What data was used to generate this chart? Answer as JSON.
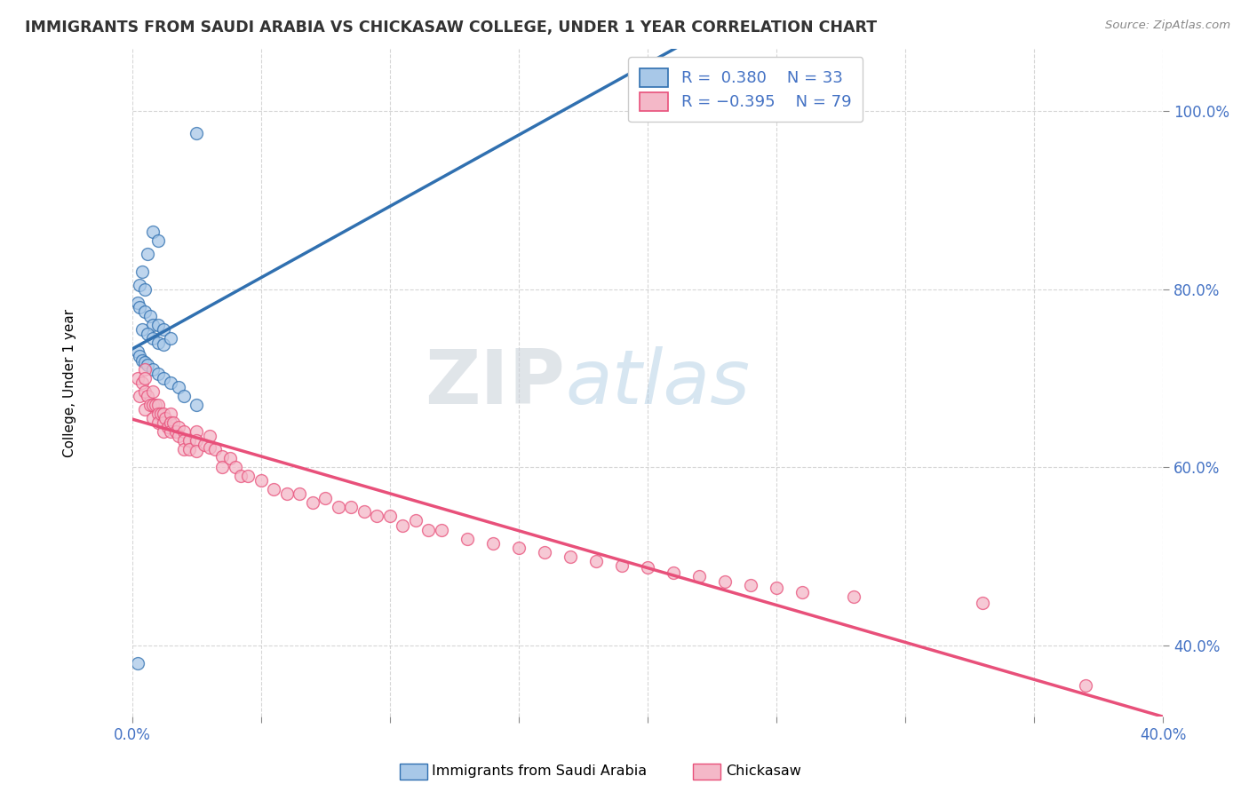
{
  "title": "IMMIGRANTS FROM SAUDI ARABIA VS CHICKASAW COLLEGE, UNDER 1 YEAR CORRELATION CHART",
  "source": "Source: ZipAtlas.com",
  "ylabel": "College, Under 1 year",
  "xlim": [
    0.0,
    0.4
  ],
  "ylim": [
    0.32,
    1.07
  ],
  "xticks": [
    0.0,
    0.05,
    0.1,
    0.15,
    0.2,
    0.25,
    0.3,
    0.35,
    0.4
  ],
  "xtick_labels": [
    "0.0%",
    "",
    "",
    "",
    "",
    "",
    "",
    "",
    "40.0%"
  ],
  "yticks": [
    0.4,
    0.6,
    0.8,
    1.0
  ],
  "ytick_labels": [
    "40.0%",
    "60.0%",
    "80.0%",
    "100.0%"
  ],
  "blue_R": 0.38,
  "blue_N": 33,
  "pink_R": -0.395,
  "pink_N": 79,
  "blue_color": "#a8c8e8",
  "pink_color": "#f4b8c8",
  "blue_line_color": "#3070b0",
  "pink_line_color": "#e8507a",
  "watermark_zip": "ZIP",
  "watermark_atlas": "atlas",
  "blue_scatter_x": [
    0.025,
    0.008,
    0.01,
    0.006,
    0.004,
    0.003,
    0.005,
    0.002,
    0.003,
    0.005,
    0.007,
    0.008,
    0.01,
    0.012,
    0.004,
    0.006,
    0.008,
    0.01,
    0.012,
    0.015,
    0.002,
    0.003,
    0.004,
    0.005,
    0.006,
    0.008,
    0.01,
    0.012,
    0.015,
    0.018,
    0.02,
    0.025,
    0.002
  ],
  "blue_scatter_y": [
    0.975,
    0.865,
    0.855,
    0.84,
    0.82,
    0.805,
    0.8,
    0.785,
    0.78,
    0.775,
    0.77,
    0.76,
    0.76,
    0.755,
    0.755,
    0.75,
    0.745,
    0.74,
    0.738,
    0.745,
    0.73,
    0.725,
    0.72,
    0.718,
    0.715,
    0.71,
    0.705,
    0.7,
    0.695,
    0.69,
    0.68,
    0.67,
    0.38
  ],
  "pink_scatter_x": [
    0.002,
    0.003,
    0.004,
    0.005,
    0.005,
    0.005,
    0.005,
    0.006,
    0.007,
    0.008,
    0.008,
    0.008,
    0.009,
    0.01,
    0.01,
    0.01,
    0.011,
    0.012,
    0.012,
    0.012,
    0.013,
    0.014,
    0.015,
    0.015,
    0.015,
    0.016,
    0.017,
    0.018,
    0.018,
    0.02,
    0.02,
    0.02,
    0.022,
    0.022,
    0.025,
    0.025,
    0.025,
    0.028,
    0.03,
    0.03,
    0.032,
    0.035,
    0.035,
    0.038,
    0.04,
    0.042,
    0.045,
    0.05,
    0.055,
    0.06,
    0.065,
    0.07,
    0.075,
    0.08,
    0.085,
    0.09,
    0.095,
    0.1,
    0.105,
    0.11,
    0.115,
    0.12,
    0.13,
    0.14,
    0.15,
    0.16,
    0.17,
    0.18,
    0.19,
    0.2,
    0.21,
    0.22,
    0.23,
    0.24,
    0.25,
    0.26,
    0.28,
    0.33,
    0.37
  ],
  "pink_scatter_y": [
    0.7,
    0.68,
    0.695,
    0.71,
    0.7,
    0.685,
    0.665,
    0.68,
    0.67,
    0.685,
    0.67,
    0.655,
    0.67,
    0.67,
    0.66,
    0.65,
    0.66,
    0.66,
    0.65,
    0.64,
    0.655,
    0.645,
    0.66,
    0.65,
    0.64,
    0.65,
    0.64,
    0.645,
    0.635,
    0.64,
    0.63,
    0.62,
    0.63,
    0.62,
    0.64,
    0.63,
    0.618,
    0.625,
    0.635,
    0.622,
    0.62,
    0.612,
    0.6,
    0.61,
    0.6,
    0.59,
    0.59,
    0.585,
    0.575,
    0.57,
    0.57,
    0.56,
    0.565,
    0.555,
    0.555,
    0.55,
    0.545,
    0.545,
    0.535,
    0.54,
    0.53,
    0.53,
    0.52,
    0.515,
    0.51,
    0.505,
    0.5,
    0.495,
    0.49,
    0.488,
    0.482,
    0.478,
    0.472,
    0.468,
    0.465,
    0.46,
    0.455,
    0.448,
    0.355
  ]
}
